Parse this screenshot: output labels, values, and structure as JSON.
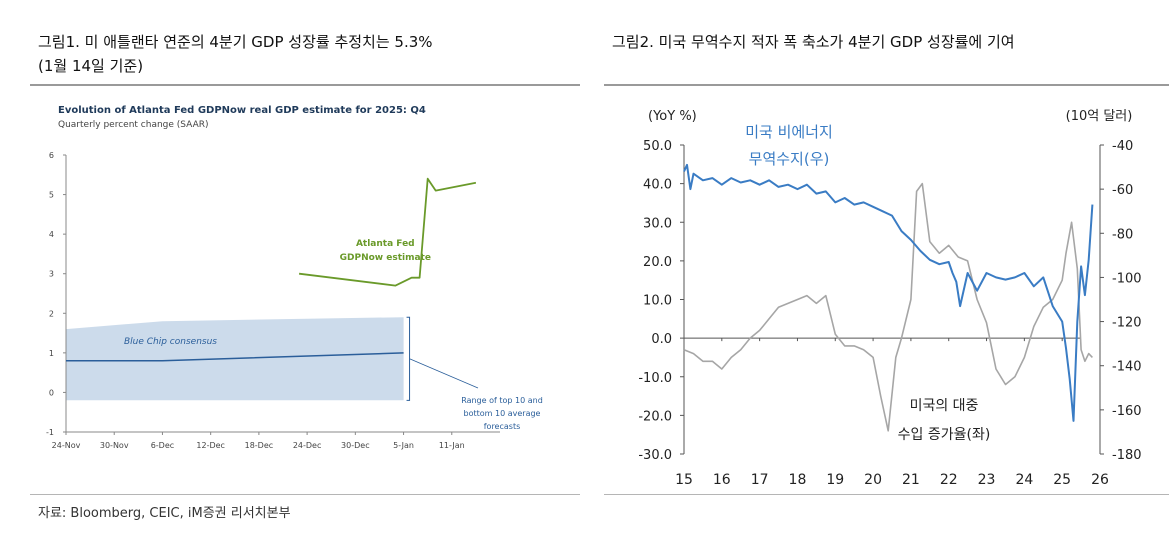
{
  "figure1": {
    "caption_line1": "그림1.  미 애틀랜타 연준의 4분기 GDP 성장률 추정치는 5.3%",
    "caption_line2": "(1월 14일 기준)"
  },
  "figure2": {
    "caption": "그림2.  미국 무역수지 적자 폭 축소가 4분기 GDP 성장률에 기여"
  },
  "source": "자료: Bloomberg, CEIC, iM증권 리서치본부",
  "colors": {
    "green": "#6a9a2a",
    "navy": "#2a5e9a",
    "band": "#c3d5e8",
    "blue": "#3a7cc4",
    "gray": "#a6a6a6"
  },
  "chart_data": [
    {
      "type": "line",
      "title": "Evolution of Atlanta Fed GDPNow real GDP estimate for 2025: Q4",
      "subtitle": "Quarterly percent change (SAAR)",
      "x_ticks": [
        "24-Nov",
        "30-Nov",
        "6-Dec",
        "12-Dec",
        "18-Dec",
        "24-Dec",
        "30-Dec",
        "5-Jan",
        "11-Jan"
      ],
      "y_ticks": [
        "6",
        "5",
        "4",
        "3",
        "2",
        "1",
        "0",
        "-1"
      ],
      "ylim": [
        -1,
        6
      ],
      "grid": false,
      "series": [
        {
          "name": "Atlanta Fed GDPNow estimate",
          "name_lines": [
            "Atlanta Fed",
            "GDPNow estimate"
          ],
          "x": [
            "2025-12-23",
            "2026-01-04",
            "2026-01-06",
            "2026-01-07",
            "2026-01-08",
            "2026-01-09",
            "2026-01-14"
          ],
          "values": [
            3.0,
            2.7,
            2.9,
            2.9,
            5.4,
            5.1,
            5.3
          ]
        },
        {
          "name": "Blue Chip consensus",
          "x": [
            "2025-11-24",
            "2025-12-06",
            "2026-01-05"
          ],
          "values": [
            0.8,
            0.8,
            1.0
          ]
        }
      ],
      "band": {
        "x": [
          "2025-11-24",
          "2025-12-06",
          "2026-01-05"
        ],
        "upper": [
          1.6,
          1.8,
          1.9
        ],
        "lower": [
          -0.2,
          -0.2,
          -0.2
        ]
      },
      "annotation": {
        "lines": [
          "Range of top 10 and",
          "bottom 10 average",
          "forecasts"
        ]
      }
    },
    {
      "type": "line",
      "left_axis_label": "(YoY %)",
      "right_axis_label": "(10억 달러)",
      "x_ticks": [
        "15",
        "16",
        "17",
        "18",
        "19",
        "20",
        "21",
        "22",
        "23",
        "24",
        "25",
        "26"
      ],
      "xlim": [
        15,
        26
      ],
      "y_left_ticks": [
        "50.0",
        "40.0",
        "30.0",
        "20.0",
        "10.0",
        "0.0",
        "-10.0",
        "-20.0",
        "-30.0"
      ],
      "ylim_left": [
        -30,
        50
      ],
      "y_right_ticks": [
        "-40",
        "-60",
        "-80",
        "-100",
        "-120",
        "-140",
        "-160",
        "-180"
      ],
      "ylim_right": [
        -180,
        -40
      ],
      "grid": false,
      "series": [
        {
          "name": "미국 비에너지 무역수지(우)",
          "label_lines": [
            "미국 비에너지",
            "무역수지(우)"
          ],
          "axis": "right",
          "x": [
            15.0,
            15.08,
            15.17,
            15.25,
            15.5,
            15.75,
            16.0,
            16.25,
            16.5,
            16.75,
            17.0,
            17.25,
            17.5,
            17.75,
            18.0,
            18.25,
            18.5,
            18.75,
            19.0,
            19.25,
            19.5,
            19.75,
            20.0,
            20.25,
            20.5,
            20.75,
            21.0,
            21.25,
            21.5,
            21.75,
            22.0,
            22.1,
            22.2,
            22.3,
            22.5,
            22.75,
            23.0,
            23.25,
            23.5,
            23.75,
            24.0,
            24.25,
            24.5,
            24.75,
            25.0,
            25.1,
            25.2,
            25.3,
            25.4,
            25.5,
            25.6,
            25.7,
            25.8
          ],
          "values": [
            -52,
            -49,
            -60,
            -53,
            -56,
            -55,
            -58,
            -55,
            -57,
            -56,
            -58,
            -56,
            -59,
            -58,
            -60,
            -58,
            -62,
            -61,
            -66,
            -64,
            -67,
            -66,
            -68,
            -70,
            -72,
            -79,
            -83,
            -88,
            -92,
            -94,
            -93,
            -98,
            -102,
            -113,
            -98,
            -106,
            -98,
            -100,
            -101,
            -100,
            -98,
            -104,
            -100,
            -113,
            -120,
            -132,
            -146,
            -165,
            -120,
            -95,
            -108,
            -92,
            -67
          ]
        },
        {
          "name": "미국의 대중 수입 증가율(좌)",
          "label_lines": [
            "미국의 대중",
            "수입 증가율(좌)"
          ],
          "axis": "left",
          "x": [
            15.0,
            15.25,
            15.5,
            15.75,
            16.0,
            16.25,
            16.5,
            16.75,
            17.0,
            17.25,
            17.5,
            17.75,
            18.0,
            18.25,
            18.5,
            18.75,
            19.0,
            19.25,
            19.5,
            19.75,
            20.0,
            20.2,
            20.4,
            20.6,
            20.75,
            21.0,
            21.15,
            21.3,
            21.5,
            21.75,
            22.0,
            22.25,
            22.5,
            22.75,
            23.0,
            23.25,
            23.5,
            23.75,
            24.0,
            24.25,
            24.5,
            24.75,
            25.0,
            25.1,
            25.25,
            25.4,
            25.5,
            25.6,
            25.7,
            25.8
          ],
          "values": [
            -3,
            -4,
            -6,
            -6,
            -8,
            -5,
            -3,
            0,
            2,
            5,
            8,
            9,
            10,
            11,
            9,
            11,
            1,
            -2,
            -2,
            -3,
            -5,
            -15,
            -24,
            -5,
            0,
            10,
            38,
            40,
            25,
            22,
            24,
            21,
            20,
            10,
            4,
            -8,
            -12,
            -10,
            -5,
            3,
            8,
            10,
            15,
            22,
            30,
            18,
            -3,
            -6,
            -4,
            -5
          ]
        }
      ]
    }
  ]
}
